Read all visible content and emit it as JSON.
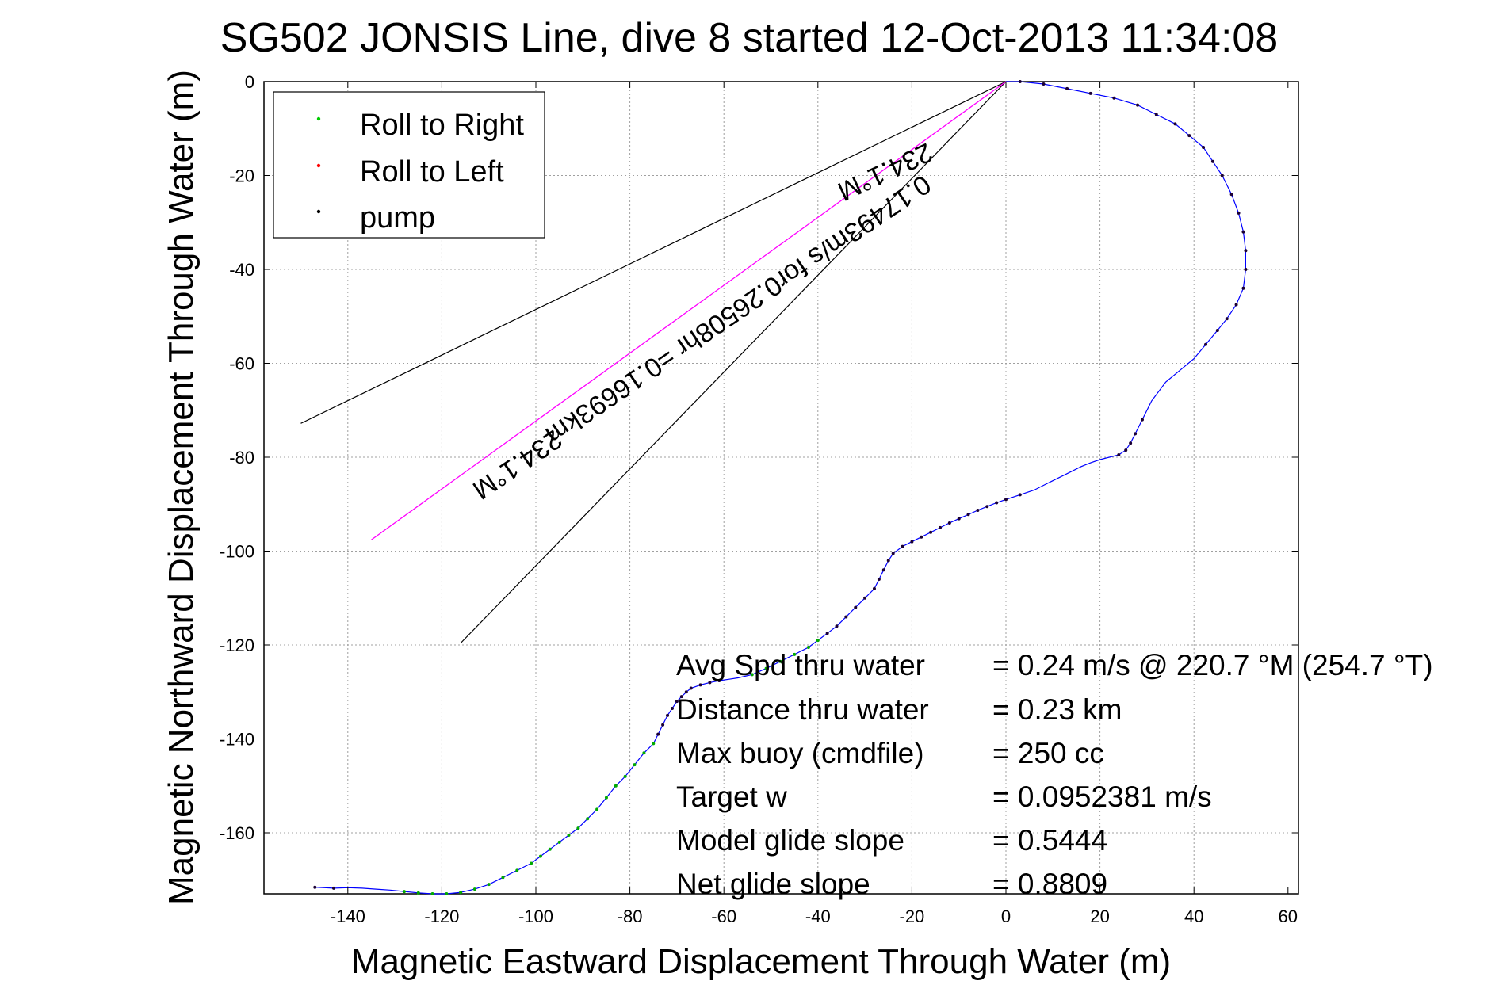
{
  "chart_data": {
    "type": "line",
    "title": "SG502 JONSIS Line, dive 8 started 12-Oct-2013 11:34:08",
    "xlabel": "Magnetic Eastward Displacement Through Water (m)",
    "ylabel": "Magnetic Northward Displacement Through Water (m)",
    "xlim": [
      -160,
      60
    ],
    "ylim": [
      -173,
      0
    ],
    "xticks": [
      -140,
      -120,
      -100,
      -80,
      -60,
      -40,
      -20,
      0,
      20,
      40,
      60
    ],
    "yticks": [
      0,
      -20,
      -40,
      -60,
      -80,
      -100,
      -120,
      -140,
      -160
    ],
    "grid": true,
    "legend_position": "top-left",
    "legend": [
      {
        "label": "Roll to Right",
        "color": "#00cc00"
      },
      {
        "label": "Roll to Left",
        "color": "#ff0000"
      },
      {
        "label": "pump",
        "color": "#000000"
      }
    ],
    "colors": {
      "track": "#0000ff",
      "heading_line": "#ff00ff",
      "wedge": "#000000"
    },
    "track": {
      "x": [
        0,
        3,
        8,
        13,
        18,
        23,
        28,
        32,
        36,
        39,
        42,
        44,
        46,
        48,
        49.5,
        50.5,
        51,
        51,
        50.5,
        49,
        47,
        45,
        42.5,
        40,
        37,
        34,
        31,
        29,
        27.5,
        26.5,
        25.5,
        24,
        22,
        20,
        18,
        16,
        14,
        12,
        10,
        8,
        6,
        3,
        0,
        -2,
        -4,
        -6,
        -8,
        -10,
        -12,
        -14,
        -16,
        -18,
        -20,
        -22,
        -24,
        -25,
        -26,
        -27,
        -28,
        -30,
        -32,
        -34,
        -36,
        -38,
        -40,
        -42,
        -45,
        -48,
        -51,
        -54,
        -57,
        -59,
        -61,
        -63,
        -65,
        -67,
        -68,
        -69,
        -70,
        -71,
        -72,
        -73,
        -74,
        -75,
        -77,
        -79,
        -81,
        -83,
        -85,
        -87,
        -89,
        -91,
        -93,
        -95,
        -97,
        -99,
        -101,
        -104,
        -107,
        -110,
        -113,
        -116,
        -119,
        -122,
        -125,
        -128,
        -131,
        -134,
        -137,
        -140,
        -143,
        -147
      ],
      "y": [
        0,
        0,
        -0.5,
        -1.5,
        -2.5,
        -3.5,
        -5,
        -7,
        -9,
        -11.5,
        -14,
        -17,
        -20,
        -24,
        -28,
        -32,
        -36,
        -40,
        -44,
        -47.5,
        -50.5,
        -53,
        -56,
        -59,
        -61.5,
        -64,
        -68,
        -72,
        -75,
        -77,
        -78.5,
        -79.5,
        -80,
        -80.5,
        -81.2,
        -82,
        -83,
        -84,
        -85,
        -86,
        -87,
        -88,
        -89,
        -89.7,
        -90.5,
        -91.3,
        -92.2,
        -93.1,
        -94,
        -95,
        -96,
        -97,
        -98,
        -99,
        -100.5,
        -102,
        -104,
        -106,
        -108,
        -110,
        -112,
        -114,
        -116,
        -117.5,
        -119,
        -120.5,
        -122,
        -123.5,
        -125,
        -126.3,
        -127,
        -127.3,
        -127.6,
        -128,
        -128.5,
        -129.2,
        -130,
        -131,
        -132,
        -133.5,
        -135,
        -137,
        -139,
        -141,
        -143,
        -145.5,
        -148,
        -150,
        -152.5,
        -155,
        -157,
        -159,
        -160.5,
        -162,
        -163.5,
        -165,
        -166.5,
        -168,
        -169.5,
        -171,
        -172,
        -172.7,
        -173,
        -173,
        -172.8,
        -172.5,
        -172.2,
        -172,
        -171.8,
        -171.7,
        -171.8,
        -171.6
      ],
      "marker": [
        "none",
        "pump",
        "pump",
        "pump",
        "pump",
        "pump",
        "pump",
        "pump",
        "pump",
        "pump",
        "pump",
        "pump",
        "pump",
        "pump",
        "pump",
        "pump",
        "pump",
        "pump",
        "pump",
        "pump",
        "pump",
        "pump",
        "pump",
        "none",
        "none",
        "none",
        "none",
        "pump",
        "pump",
        "pump",
        "pump",
        "pump",
        "none",
        "none",
        "none",
        "none",
        "none",
        "none",
        "none",
        "none",
        "none",
        "pump",
        "pump",
        "pump",
        "pump",
        "pump",
        "pump",
        "pump",
        "pump",
        "pump",
        "pump",
        "pump",
        "pump",
        "pump",
        "pump",
        "pump",
        "pump",
        "pump",
        "pump",
        "pump",
        "pump",
        "pump",
        "pump",
        "pump",
        "right",
        "right",
        "right",
        "right",
        "right",
        "right",
        "none",
        "none",
        "pump",
        "pump",
        "pump",
        "pump",
        "pump",
        "pump",
        "pump",
        "pump",
        "pump",
        "pump",
        "pump",
        "right",
        "right",
        "right",
        "right",
        "right",
        "right",
        "right",
        "right",
        "right",
        "right",
        "right",
        "right",
        "right",
        "right",
        "right",
        "right",
        "right",
        "right",
        "right",
        "right",
        "right",
        "right",
        "right",
        "none",
        "none",
        "none",
        "none",
        "pump",
        "pump"
      ]
    },
    "heading_line": {
      "x": [
        0,
        -135
      ],
      "y": [
        0,
        -97.6
      ]
    },
    "wedge_lines": [
      {
        "x": [
          0,
          -150
        ],
        "y": [
          0,
          -72.8
        ]
      },
      {
        "x": [
          0,
          -116
        ],
        "y": [
          0,
          -119.6
        ]
      }
    ],
    "annotations": [
      {
        "text": "234.1°M",
        "x": -26.5,
        "y": -17.5,
        "rotation": 155
      },
      {
        "text": "0.17493m/s for0.26508hr =0.16693km",
        "x": -58,
        "y": -47,
        "rotation": 145.9
      },
      {
        "text": "234.1°M",
        "x": -105,
        "y": -80,
        "rotation": 145.9
      }
    ],
    "summary": [
      {
        "label": "Avg Spd thru water",
        "value": "=  0.24 m/s @ 220.7 °M (254.7 °T)"
      },
      {
        "label": "Distance thru water",
        "value": "=  0.23 km"
      },
      {
        "label": "Max buoy (cmdfile)",
        "value": "= 250 cc"
      },
      {
        "label": "Target w",
        "value": "= 0.0952381 m/s"
      },
      {
        "label": "Model glide slope",
        "value": "= 0.5444"
      },
      {
        "label": "Net glide slope",
        "value": "= 0.8809"
      }
    ]
  }
}
